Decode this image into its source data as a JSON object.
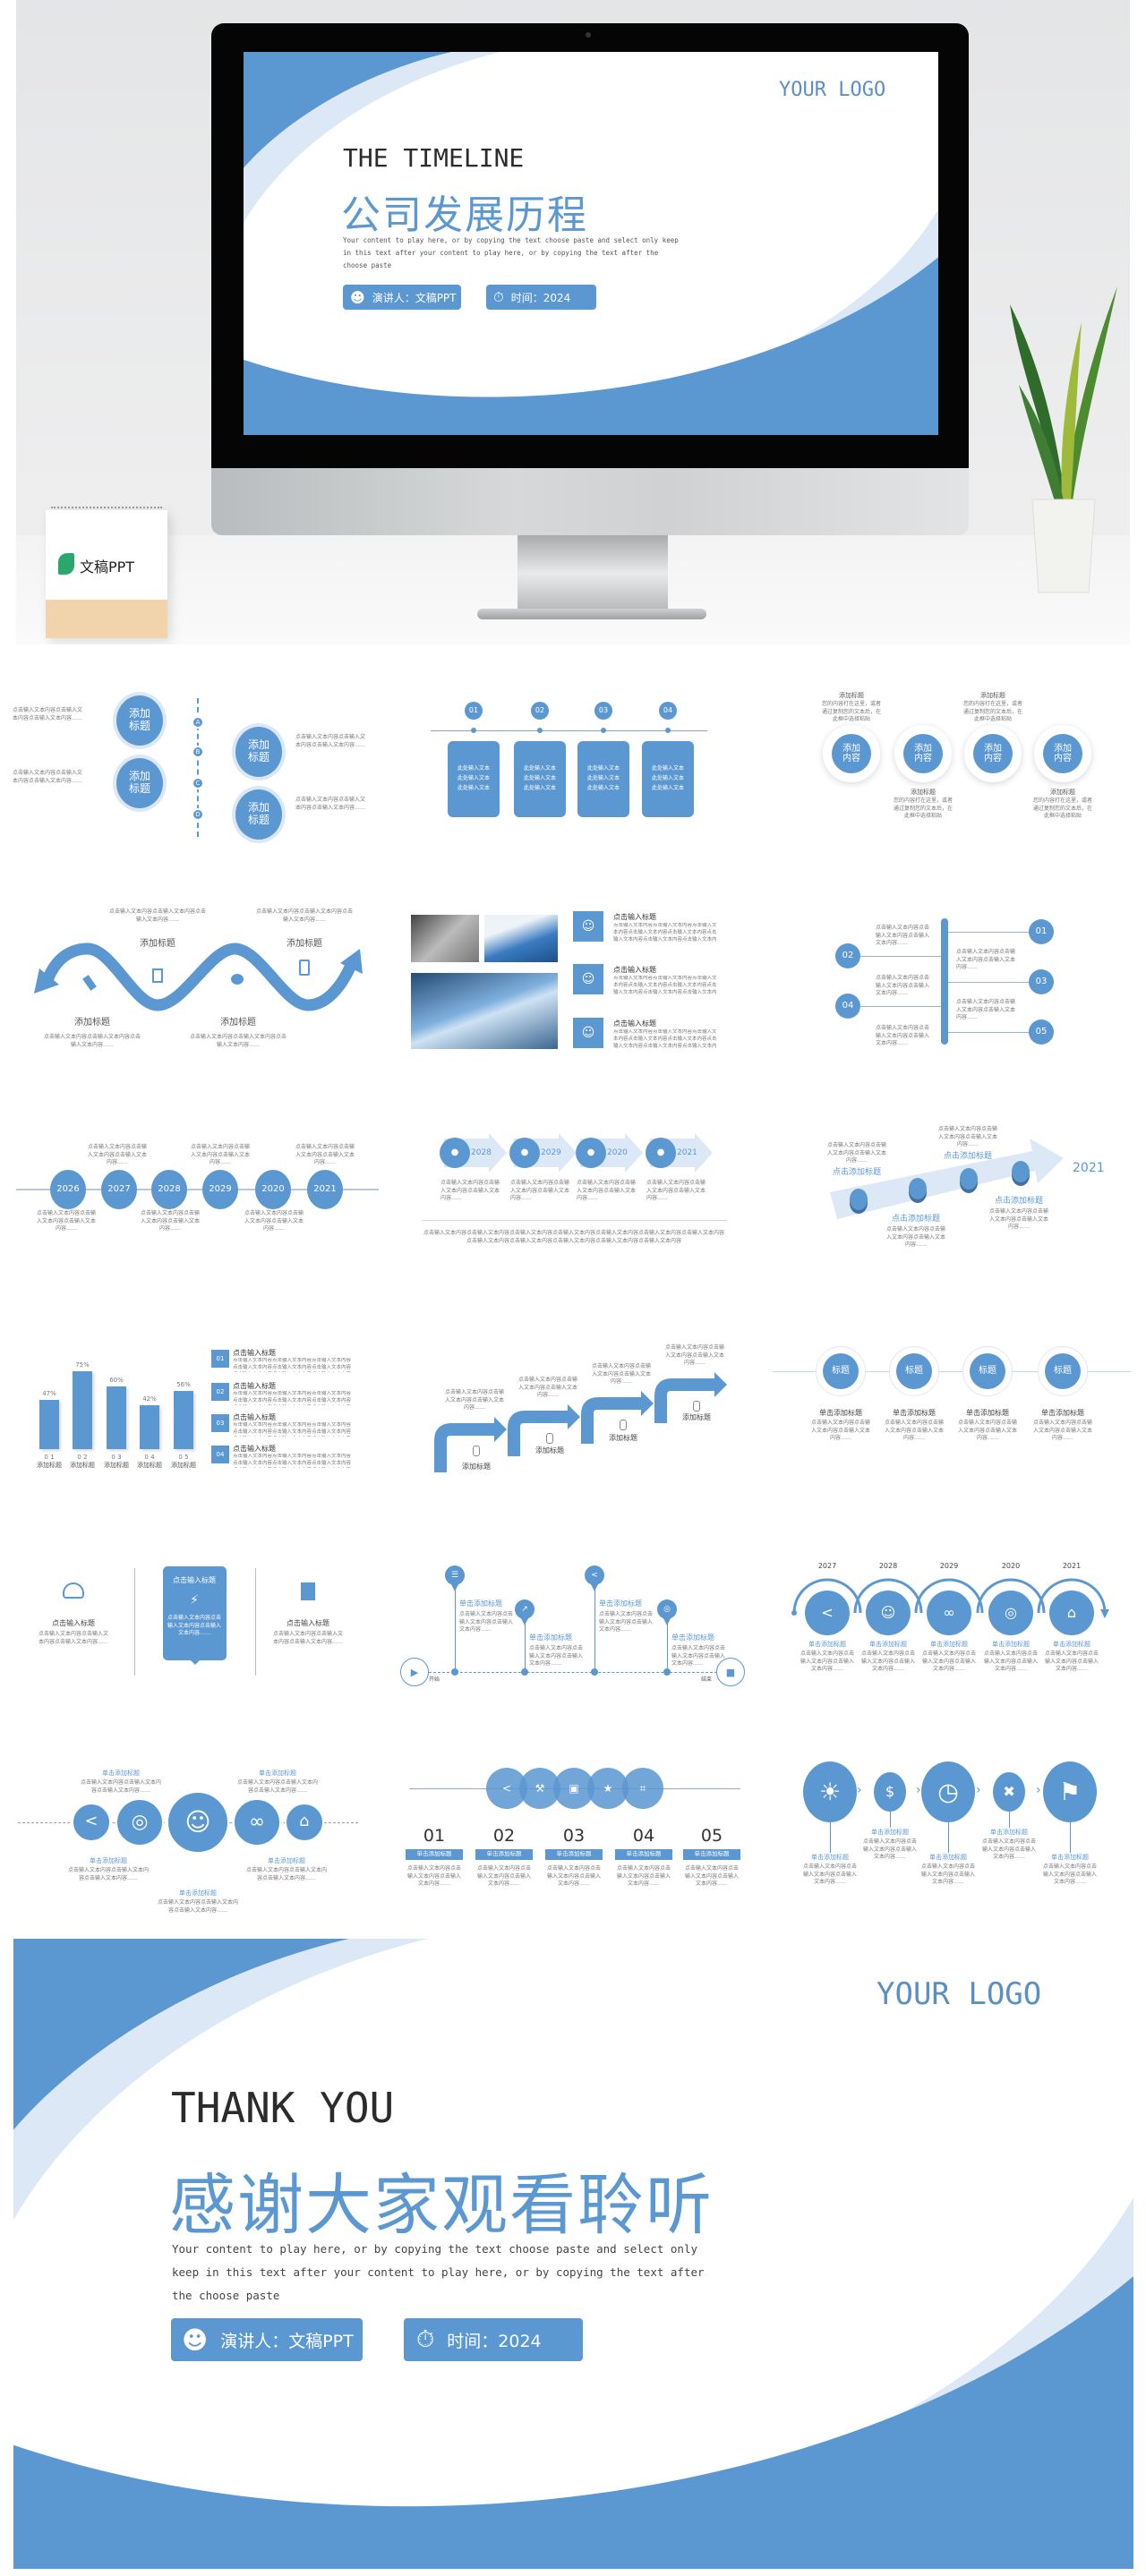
{
  "colors": {
    "accent": "#5b97d1",
    "light": "#dce8f5",
    "text": "#777777",
    "dark": "#333333"
  },
  "hero": {
    "logo": "YOUR LOGO",
    "title_en": "THE TIMELINE",
    "title_cn": "公司发展历程",
    "body": "Your content to play here, or by copying the text choose paste and select only keep in this text after your content to play here, or by copying the text after the choose paste",
    "presenter": "演讲人：文稿PPT",
    "time": "时间：2024",
    "brand": "文稿PPT"
  },
  "filler": {
    "p": "点击输入文本内容点击输入文本内容点击输入文本内容……",
    "box": "此处输入文本",
    "desc": "您的内容打在这里，或者通过复制您的文本后，在此框中选择粘贴",
    "long": "点击输入文本内容点击输入文本内容点击输入文本内容点击输入文本内容点击输入文本内容点击输入文本内容点击输入文本内容点击输入文本内容点击输入文本内容点击输入文本内容点击输入文本内容点击输入文本内容"
  },
  "labels": {
    "add_title": "添加标题",
    "add_content": "添加内容",
    "input_title": "点击输入标题",
    "click_add_title": "点击添加标题",
    "single_add_title": "单击添加标题",
    "title": "标题",
    "start": "开始",
    "end": "结束"
  },
  "t1": {
    "markers": [
      "A",
      "B",
      "C",
      "D"
    ]
  },
  "t2": {
    "markers": [
      "01",
      "02",
      "03",
      "04"
    ]
  },
  "t6": {
    "markers": [
      "01",
      "02",
      "03",
      "04",
      "05"
    ]
  },
  "t7": {
    "years": [
      "2026",
      "2027",
      "2028",
      "2029",
      "2020",
      "2021"
    ]
  },
  "t8": {
    "years": [
      "2028",
      "2029",
      "2020",
      "2021"
    ]
  },
  "t9": {
    "year": "2021"
  },
  "t10": {
    "list": [
      "01",
      "02",
      "03",
      "04"
    ]
  },
  "t15": {
    "years": [
      "2027",
      "2028",
      "2029",
      "2020",
      "2021"
    ]
  },
  "t17": {
    "numbers": [
      "01",
      "02",
      "03",
      "04",
      "05"
    ]
  },
  "chart_data": {
    "type": "bar",
    "categories": [
      "0 1",
      "0 2",
      "0 3",
      "0 4",
      "0 5"
    ],
    "category_labels": [
      "添加标题",
      "添加标题",
      "添加标题",
      "添加标题",
      "添加标题"
    ],
    "values": [
      47,
      75,
      60,
      42,
      56
    ],
    "value_labels": [
      "47%",
      "75%",
      "60%",
      "42%",
      "56%"
    ]
  },
  "icons": {
    "t15": [
      "share-icon",
      "team-icon",
      "link-icon",
      "target-icon",
      "home-icon"
    ],
    "t16": [
      "share-icon",
      "target-icon",
      "team-icon",
      "link-icon",
      "home-icon"
    ],
    "t17": [
      "share-icon",
      "wrench-icon",
      "image-icon",
      "star-icon",
      "crop-icon"
    ],
    "t18": [
      "bulb-icon",
      "money-bag-icon",
      "clock-icon",
      "tools-icon",
      "flag-icon"
    ]
  },
  "ending": {
    "logo": "YOUR LOGO",
    "title_en": "THANK YOU",
    "title_cn": "感谢大家观看聆听",
    "body": "Your content to play here, or by copying the text choose paste and select only keep in this text after your content to play here, or by copying the text after the choose paste",
    "presenter": "演讲人：文稿PPT",
    "time": "时间：2024"
  }
}
